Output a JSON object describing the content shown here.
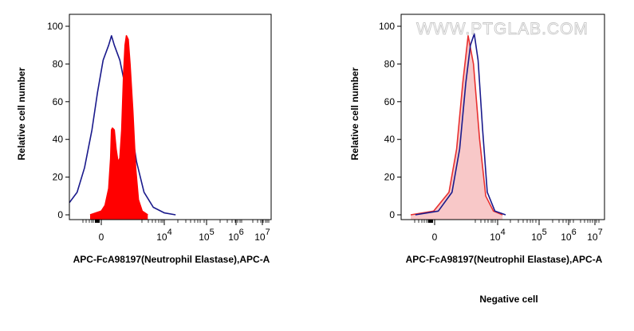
{
  "chart_data": [
    {
      "type": "area",
      "panel": "left",
      "xlabel": "APC-FcA98197(Neutrophil Elastase),APC-A",
      "ylabel": "Relative cell number",
      "xscale": "biexponential",
      "ylim": [
        0,
        100
      ],
      "yticks": [
        0,
        20,
        40,
        60,
        80,
        100
      ],
      "xticks": [
        {
          "label": "0",
          "sup": "",
          "value": 0
        },
        {
          "label": "10",
          "sup": "4",
          "value": 10000
        },
        {
          "label": "10",
          "sup": "5",
          "value": 100000
        },
        {
          "label": "10",
          "sup": "6",
          "value": 1000000
        },
        {
          "label": "10",
          "sup": "7",
          "value": 10000000
        }
      ],
      "grid": false,
      "series": [
        {
          "color": "#1a1a8c",
          "fill": "none",
          "points": [
            [
              -4,
              0
            ],
            [
              -2.7,
              1
            ],
            [
              -1.9,
              4
            ],
            [
              -1.3,
              12
            ],
            [
              -0.9,
              25
            ],
            [
              -0.5,
              45
            ],
            [
              -0.2,
              65
            ],
            [
              0.1,
              82
            ],
            [
              0.4,
              90
            ],
            [
              0.55,
              95
            ],
            [
              0.7,
              90
            ],
            [
              0.85,
              86
            ],
            [
              1.0,
              82
            ],
            [
              1.25,
              70
            ],
            [
              1.55,
              50
            ],
            [
              1.9,
              28
            ],
            [
              2.3,
              12
            ],
            [
              2.8,
              4
            ],
            [
              3.4,
              1
            ],
            [
              4.0,
              0
            ]
          ]
        },
        {
          "color": "#ff0000",
          "fill": "#ff0000",
          "points": [
            [
              -0.6,
              0
            ],
            [
              -0.3,
              1
            ],
            [
              0.0,
              2
            ],
            [
              0.2,
              5
            ],
            [
              0.4,
              14
            ],
            [
              0.5,
              30
            ],
            [
              0.55,
              45
            ],
            [
              0.6,
              46
            ],
            [
              0.7,
              45
            ],
            [
              0.8,
              35
            ],
            [
              0.9,
              28
            ],
            [
              1.0,
              30
            ],
            [
              1.1,
              45
            ],
            [
              1.2,
              75
            ],
            [
              1.28,
              90
            ],
            [
              1.35,
              95
            ],
            [
              1.45,
              93
            ],
            [
              1.55,
              80
            ],
            [
              1.7,
              55
            ],
            [
              1.85,
              25
            ],
            [
              2.0,
              8
            ],
            [
              2.2,
              2
            ],
            [
              2.5,
              0
            ]
          ]
        }
      ]
    },
    {
      "type": "area",
      "panel": "right",
      "xlabel": "APC-FcA98197(Neutrophil Elastase),APC-A",
      "ylabel": "Relative cell number",
      "xscale": "biexponential",
      "ylim": [
        0,
        100
      ],
      "yticks": [
        0,
        20,
        40,
        60,
        80,
        100
      ],
      "xticks": [
        {
          "label": "0",
          "sup": "",
          "value": 0
        },
        {
          "label": "10",
          "sup": "4",
          "value": 10000
        },
        {
          "label": "10",
          "sup": "5",
          "value": 100000
        },
        {
          "label": "10",
          "sup": "6",
          "value": 1000000
        },
        {
          "label": "10",
          "sup": "7",
          "value": 10000000
        }
      ],
      "grid": false,
      "series": [
        {
          "color": "#e83030",
          "fill": "#f8c8c8",
          "points": [
            [
              0,
              0
            ],
            [
              1.5,
              2
            ],
            [
              2.5,
              12
            ],
            [
              3.0,
              35
            ],
            [
              3.4,
              70
            ],
            [
              3.75,
              95
            ],
            [
              4.1,
              80
            ],
            [
              4.5,
              40
            ],
            [
              4.9,
              10
            ],
            [
              5.4,
              2
            ],
            [
              6,
              0
            ]
          ]
        },
        {
          "color": "#1a1a8c",
          "fill": "none",
          "points": [
            [
              0.3,
              0
            ],
            [
              1.8,
              2
            ],
            [
              2.7,
              12
            ],
            [
              3.2,
              35
            ],
            [
              3.6,
              70
            ],
            [
              3.9,
              90
            ],
            [
              4.15,
              96
            ],
            [
              4.4,
              82
            ],
            [
              4.7,
              45
            ],
            [
              5.0,
              12
            ],
            [
              5.5,
              2
            ],
            [
              6.2,
              0
            ]
          ]
        }
      ],
      "annotation": "Negative cell",
      "watermark": "WWW.PTGLAB.COM"
    }
  ]
}
